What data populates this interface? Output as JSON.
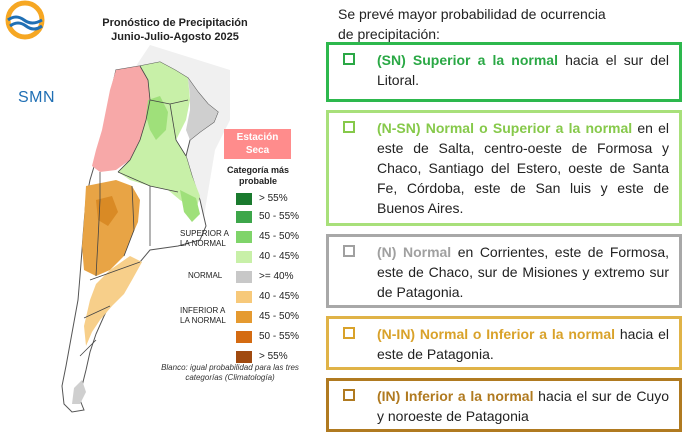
{
  "map": {
    "title_line1": "Pronóstico de Precipitación",
    "title_line2": "Junio-Julio-Agosto 2025",
    "logo_text": "SMN",
    "dry_station_line1": "Estación",
    "dry_station_line2": "Seca",
    "legend_heading_line1": "Categoría más",
    "legend_heading_line2": "probable",
    "group_superior_line1": "SUPERIOR A",
    "group_superior_line2": "LA NORMAL",
    "group_normal": "NORMAL",
    "group_inferior_line1": "INFERIOR A",
    "group_inferior_line2": "LA NORMAL",
    "legend": [
      {
        "label": "> 55%",
        "color": "#1a7a2e"
      },
      {
        "label": "50 - 55%",
        "color": "#3da64a"
      },
      {
        "label": "45 - 50%",
        "color": "#7fd46a"
      },
      {
        "label": "40 - 45%",
        "color": "#c8f0a8"
      },
      {
        "label": ">= 40%",
        "color": "#c8c8c8"
      },
      {
        "label": "40 - 45%",
        "color": "#f7c97a"
      },
      {
        "label": "45 - 50%",
        "color": "#e59a30"
      },
      {
        "label": "50 - 55%",
        "color": "#d46b12"
      },
      {
        "label": "> 55%",
        "color": "#a04a10"
      }
    ],
    "note_line1": "Blanco: igual probabilidad para las tres",
    "note_line2": "categorías (Climatología)"
  },
  "panel": {
    "intro_line1": "Se prevé mayor probabilidad de ocurrencia",
    "intro_line2": "de precipitación:",
    "categories": [
      {
        "lead": "(SN) Superior a la normal",
        "rest": "  hacia el sur del Litoral.",
        "border": "#2db84d",
        "lead_color": "#2aa845"
      },
      {
        "lead": "(N-SN) Normal o Superior a la normal",
        "rest": " en el este de Salta, centro-oeste de Formosa y Chaco, Santiago del Estero, oeste de Santa Fe, Córdoba, este de San luis y este de Buenos Aires.",
        "border": "#a8e07a",
        "lead_color": "#86c94a"
      },
      {
        "lead": "(N) Normal",
        "rest": " en Corrientes, este de Formosa, este de Chaco, sur de Misiones y extremo sur de Patagonia.",
        "border": "#a8a8a8",
        "lead_color": "#a0a0a0"
      },
      {
        "lead": "(N-IN) Normal o Inferior a la normal",
        "rest": " hacia el este de Patagonia.",
        "border": "#e0b347",
        "lead_color": "#d9a22a"
      },
      {
        "lead": "(IN) Inferior a la normal",
        "rest": " hacia el sur de Cuyo y noroeste de Patagonia",
        "border": "#b07a20",
        "lead_color": "#b07a20"
      }
    ]
  }
}
